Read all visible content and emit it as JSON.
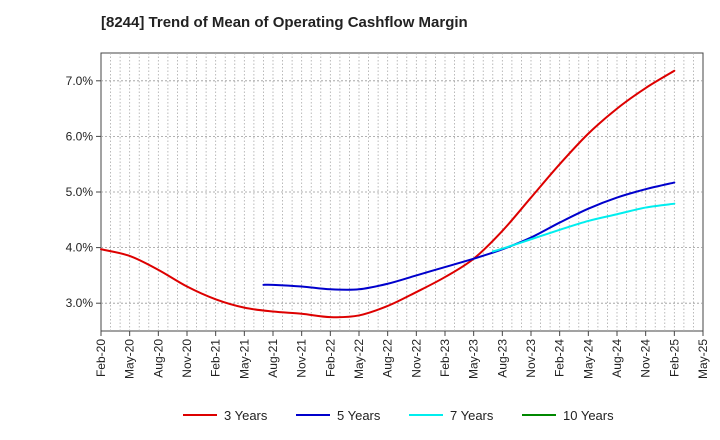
{
  "chart_data": {
    "type": "line",
    "title": "[8244]  Trend of Mean of Operating Cashflow Margin",
    "xlabel": "",
    "ylabel": "",
    "x_start": "Feb-20",
    "x_end": "May-25",
    "x_tick_labels": [
      "Feb-20",
      "May-20",
      "Aug-20",
      "Nov-20",
      "Feb-21",
      "May-21",
      "Aug-21",
      "Nov-21",
      "Feb-22",
      "May-22",
      "Aug-22",
      "Nov-22",
      "Feb-23",
      "May-23",
      "Aug-23",
      "Nov-23",
      "Feb-24",
      "May-24",
      "Aug-24",
      "Nov-24",
      "Feb-25",
      "May-25"
    ],
    "y_ticks": [
      3.0,
      4.0,
      5.0,
      6.0,
      7.0
    ],
    "y_tick_labels": [
      "3.0%",
      "4.0%",
      "5.0%",
      "6.0%",
      "7.0%"
    ],
    "ylim": [
      2.5,
      7.5
    ],
    "grid": true,
    "legend_position": "bottom",
    "series": [
      {
        "name": "3 Years",
        "color": "#dd0000",
        "points": [
          [
            "Feb-20",
            3.97
          ],
          [
            "May-20",
            3.85
          ],
          [
            "Aug-20",
            3.6
          ],
          [
            "Nov-20",
            3.3
          ],
          [
            "Feb-21",
            3.07
          ],
          [
            "May-21",
            2.92
          ],
          [
            "Aug-21",
            2.85
          ],
          [
            "Nov-21",
            2.81
          ],
          [
            "Feb-22",
            2.75
          ],
          [
            "May-22",
            2.78
          ],
          [
            "Aug-22",
            2.95
          ],
          [
            "Nov-22",
            3.2
          ],
          [
            "Feb-23",
            3.47
          ],
          [
            "May-23",
            3.8
          ],
          [
            "Aug-23",
            4.3
          ],
          [
            "Nov-23",
            4.9
          ],
          [
            "Feb-24",
            5.5
          ],
          [
            "May-24",
            6.05
          ],
          [
            "Aug-24",
            6.5
          ],
          [
            "Nov-24",
            6.87
          ],
          [
            "Feb-25",
            7.18
          ]
        ]
      },
      {
        "name": "5 Years",
        "color": "#0000cc",
        "points": [
          [
            "Jul-21",
            3.33
          ],
          [
            "Aug-21",
            3.33
          ],
          [
            "Nov-21",
            3.3
          ],
          [
            "Feb-22",
            3.25
          ],
          [
            "May-22",
            3.25
          ],
          [
            "Aug-22",
            3.35
          ],
          [
            "Nov-22",
            3.5
          ],
          [
            "Feb-23",
            3.65
          ],
          [
            "May-23",
            3.8
          ],
          [
            "Aug-23",
            3.97
          ],
          [
            "Nov-23",
            4.18
          ],
          [
            "Feb-24",
            4.45
          ],
          [
            "May-24",
            4.7
          ],
          [
            "Aug-24",
            4.9
          ],
          [
            "Nov-24",
            5.05
          ],
          [
            "Feb-25",
            5.17
          ]
        ]
      },
      {
        "name": "7 Years",
        "color": "#00eeee",
        "points": [
          [
            "Jul-23",
            3.93
          ],
          [
            "Aug-23",
            3.98
          ],
          [
            "Nov-23",
            4.15
          ],
          [
            "Feb-24",
            4.32
          ],
          [
            "May-24",
            4.48
          ],
          [
            "Aug-24",
            4.6
          ],
          [
            "Nov-24",
            4.72
          ],
          [
            "Feb-25",
            4.79
          ]
        ]
      },
      {
        "name": "10 Years",
        "color": "#008800",
        "points": []
      }
    ]
  }
}
